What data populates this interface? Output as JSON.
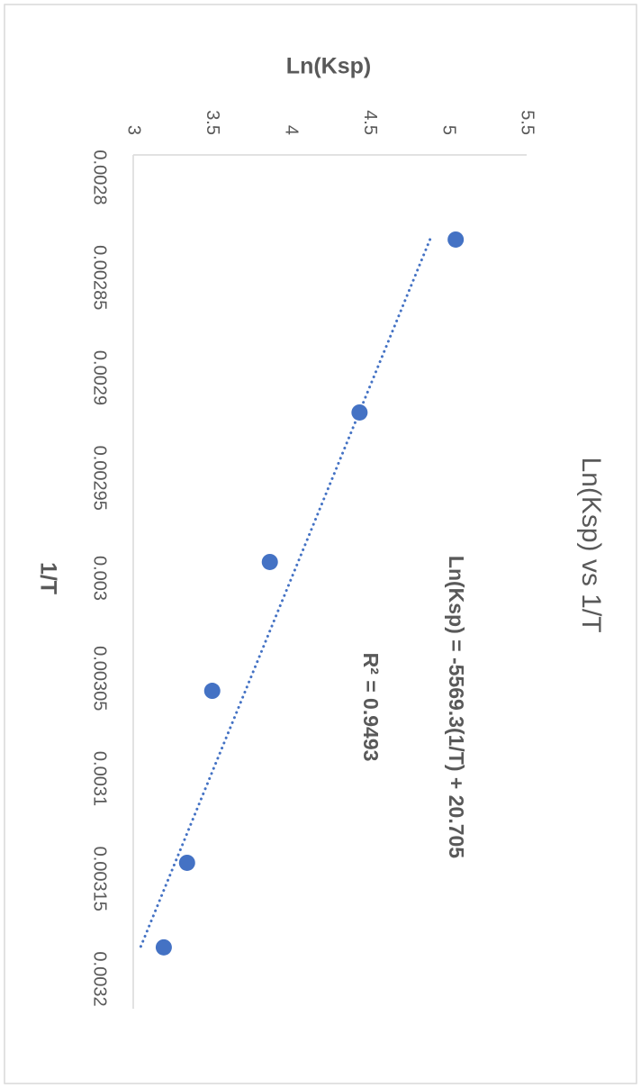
{
  "chart_data": {
    "type": "scatter",
    "title": "Ln(Ksp) vs 1/T",
    "x_label": "1/T",
    "y_label": "Ln(Ksp)",
    "x": [
      0.002831,
      0.0029173,
      0.0029919,
      0.0030562,
      0.003142,
      0.0031842
    ],
    "values": [
      5.049,
      4.438,
      3.868,
      3.502,
      3.342,
      3.194
    ],
    "color": "#4472c4",
    "xlim": [
      0.0028,
      0.0032
    ],
    "xticks": [
      0.0028,
      0.00285,
      0.0029,
      0.00295,
      0.003,
      0.00305,
      0.0031,
      0.00315,
      0.0032
    ],
    "ylim": [
      3,
      5.5
    ],
    "yticks": [
      3,
      3.5,
      4,
      4.5,
      5,
      5.5
    ],
    "trendline": true,
    "annotations": [
      "Ln(Ksp) = -5569.3(1/T) + 20.705",
      "R² = 0.9493"
    ]
  }
}
